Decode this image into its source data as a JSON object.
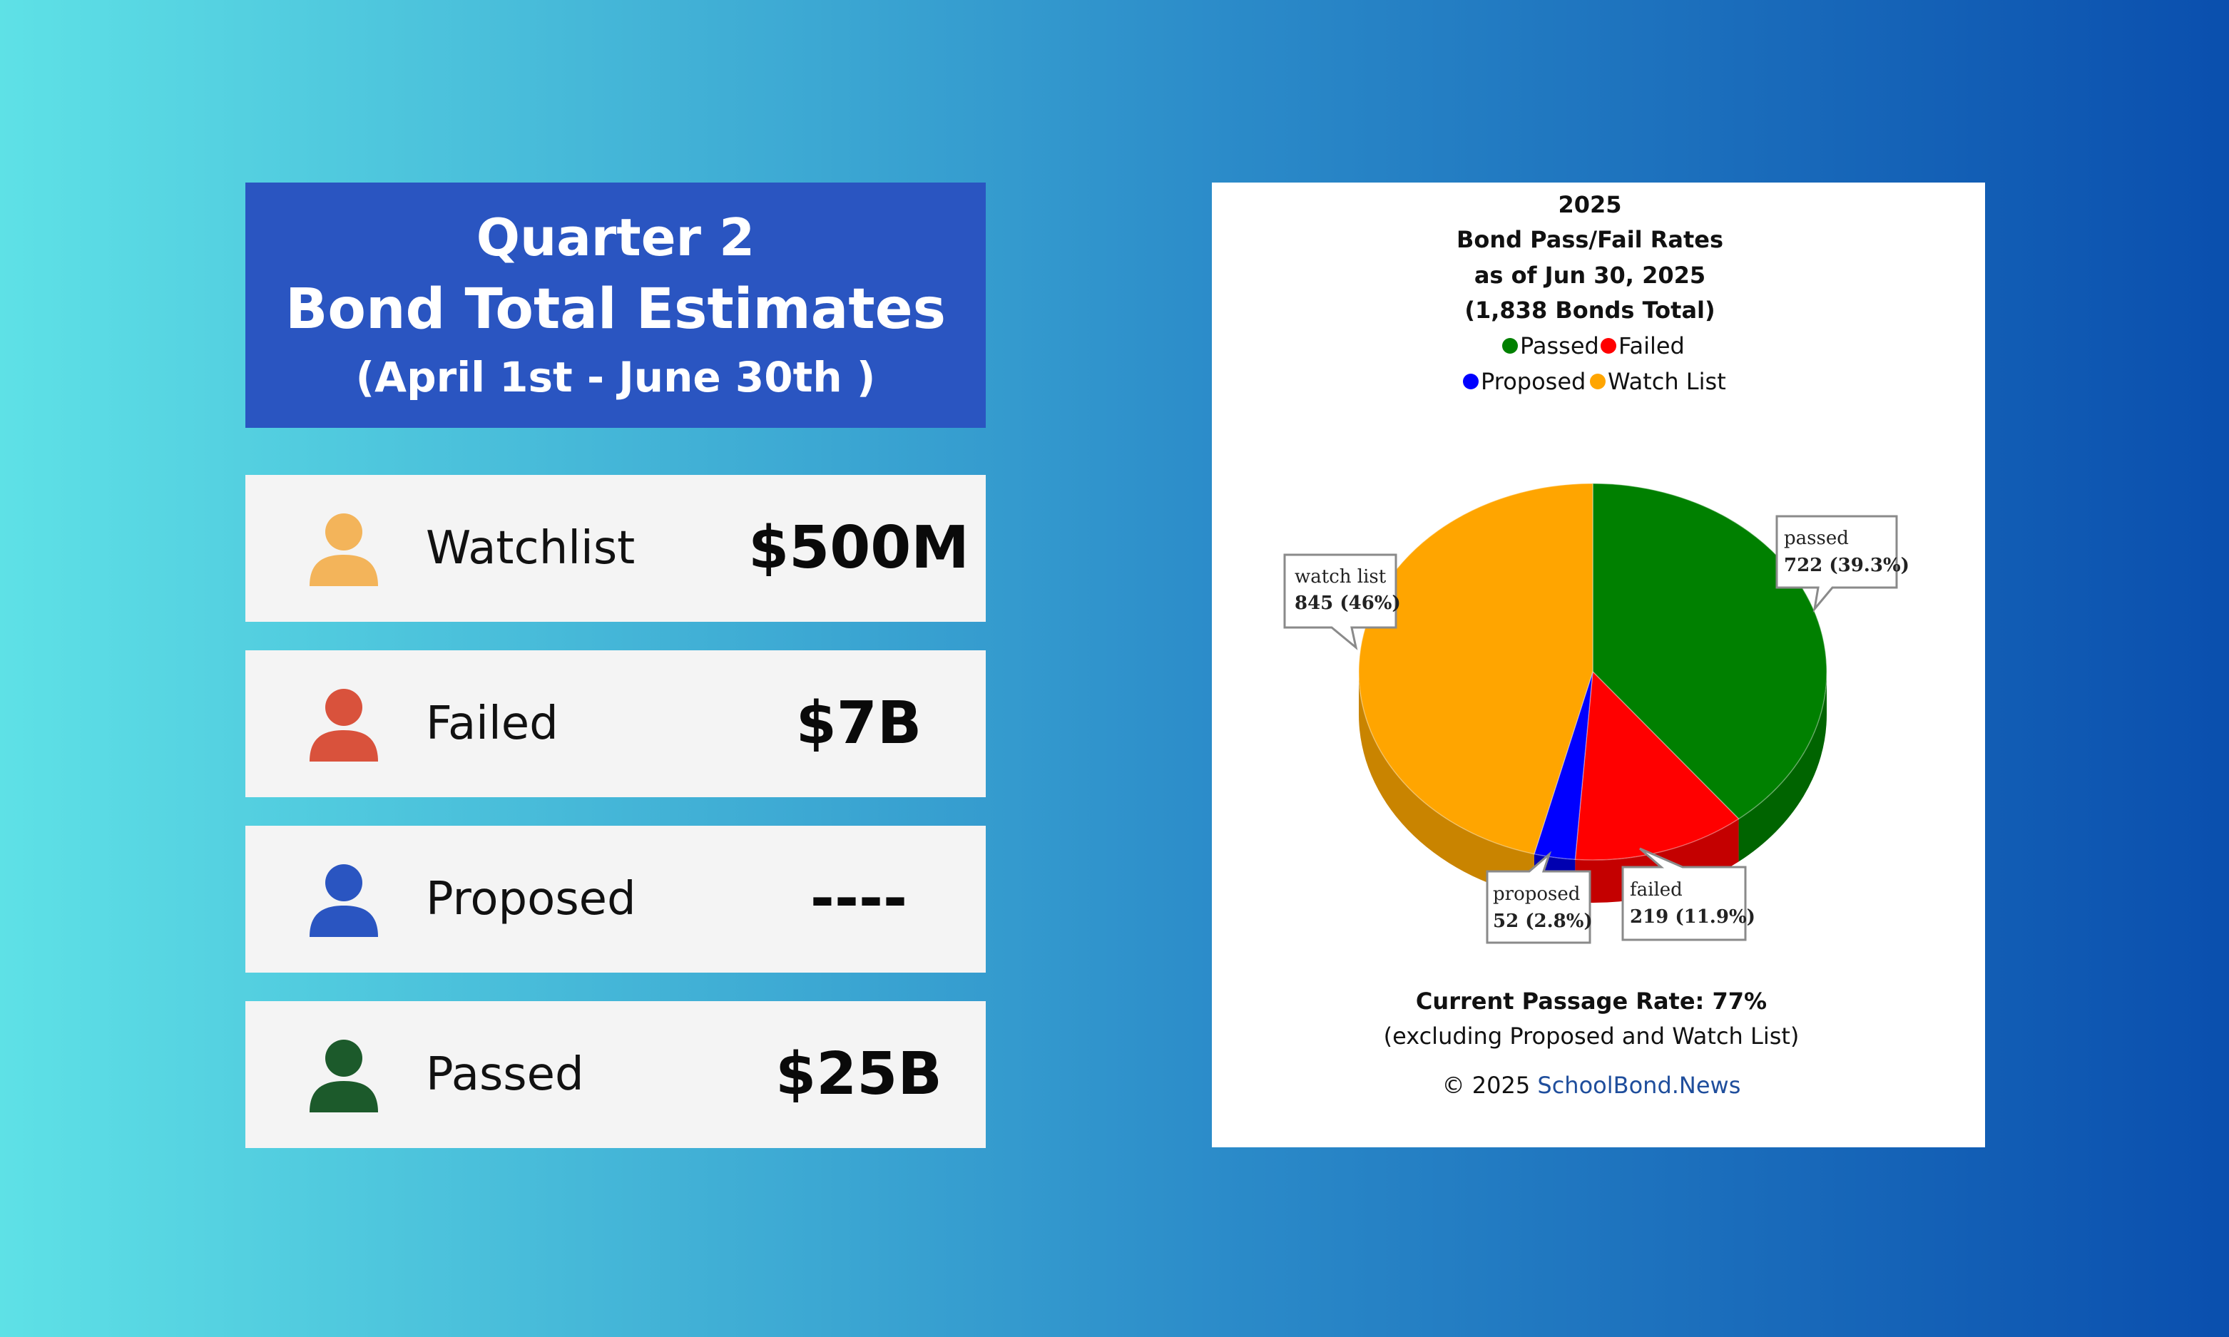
{
  "header": {
    "line1": "Quarter 2",
    "line2": "Bond Total Estimates",
    "line3": "(April 1st - June 30th )",
    "color": "#2a55c1"
  },
  "estimates": [
    {
      "label": "Watchlist",
      "amount": "$500M",
      "icon": "person-icon",
      "color": "#f3b45a"
    },
    {
      "label": "Failed",
      "amount": "$7B",
      "icon": "person-icon",
      "color": "#d9523c"
    },
    {
      "label": "Proposed",
      "amount": "----",
      "icon": "person-icon",
      "color": "#2a55c1"
    },
    {
      "label": "Passed",
      "amount": "$25B",
      "icon": "person-icon",
      "color": "#1c5a2b"
    }
  ],
  "chart_data": {
    "type": "pie",
    "title_lines": [
      "2025",
      "Bond Pass/Fail Rates",
      "as of Jun 30, 2025",
      "(1,838 Bonds Total)"
    ],
    "legend": [
      {
        "label": "Passed",
        "color": "#008000"
      },
      {
        "label": "Failed",
        "color": "#ff0000"
      },
      {
        "label": "Proposed",
        "color": "#0000ff"
      },
      {
        "label": "Watch List",
        "color": "#ffa500"
      }
    ],
    "slices": [
      {
        "name": "passed",
        "value": 722,
        "percent": "39.3%",
        "color": "#008000",
        "side": "#006400",
        "label_value": "722 (39.3%)"
      },
      {
        "name": "failed",
        "value": 219,
        "percent": "11.9%",
        "color": "#ff0000",
        "side": "#c40000",
        "label_value": "219 (11.9%)"
      },
      {
        "name": "proposed",
        "value": 52,
        "percent": "2.8%",
        "color": "#0000ff",
        "side": "#0000b0",
        "label_value": "52 (2.8%)"
      },
      {
        "name": "watch list",
        "value": 845,
        "percent": "46%",
        "color": "#ffa500",
        "side": "#c98400",
        "label_value": "845 (46%)"
      }
    ],
    "footer_bold": "Current Passage Rate: 77%",
    "footer_note": "(excluding Proposed and Watch List)",
    "copyright_prefix": "© 2025 ",
    "copyright_link": "SchoolBond.News",
    "link_color": "#1f4e9c"
  }
}
